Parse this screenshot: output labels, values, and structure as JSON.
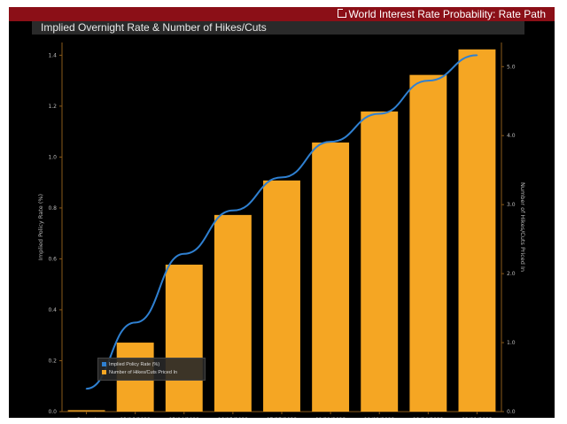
{
  "header": {
    "window_title": "World Interest Rate Probability: Rate Path",
    "chart_title": "Implied Overnight Rate & Number of Hikes/Cuts",
    "external_link_icon": "external-link-icon"
  },
  "colors": {
    "bars": "#f5a623",
    "line": "#2f80d1",
    "header_red": "#8b0f17",
    "background": "#000000"
  },
  "chart_data": {
    "type": "bar",
    "categories": [
      "Current",
      "03/16/2022",
      "05/04/2022",
      "06/15/2022",
      "07/27/2022",
      "09/21/2022",
      "11/02/2022",
      "12/14/2022",
      "02/01/2023"
    ],
    "series": [
      {
        "name": "Implied Policy Rate (%)",
        "type": "line",
        "axis": "left",
        "values": [
          0.09,
          0.35,
          0.62,
          0.79,
          0.92,
          1.06,
          1.17,
          1.3,
          1.4
        ]
      },
      {
        "name": "Number of Hikes/Cuts Priced In",
        "type": "bar",
        "axis": "right",
        "values": [
          0.0,
          1.0,
          2.13,
          2.85,
          3.35,
          3.9,
          4.35,
          4.88,
          5.25
        ]
      }
    ],
    "ylabel": "Implied Policy Rate (%)",
    "ylabel_right": "Number of Hikes/Cuts Priced In",
    "ylim": [
      0.0,
      1.45
    ],
    "ylim_right": [
      0.0,
      5.35
    ],
    "yticks": [
      "0.0",
      "0.2",
      "0.4",
      "0.6",
      "0.8",
      "1.0",
      "1.2",
      "1.4"
    ],
    "yticks_right": [
      "0.0",
      "1.0",
      "2.0",
      "3.0",
      "4.0",
      "5.0"
    ],
    "legend": [
      "Implied Policy Rate (%)",
      "Number of Hikes/Cuts Priced In"
    ],
    "legend_position": "bottom-left"
  }
}
